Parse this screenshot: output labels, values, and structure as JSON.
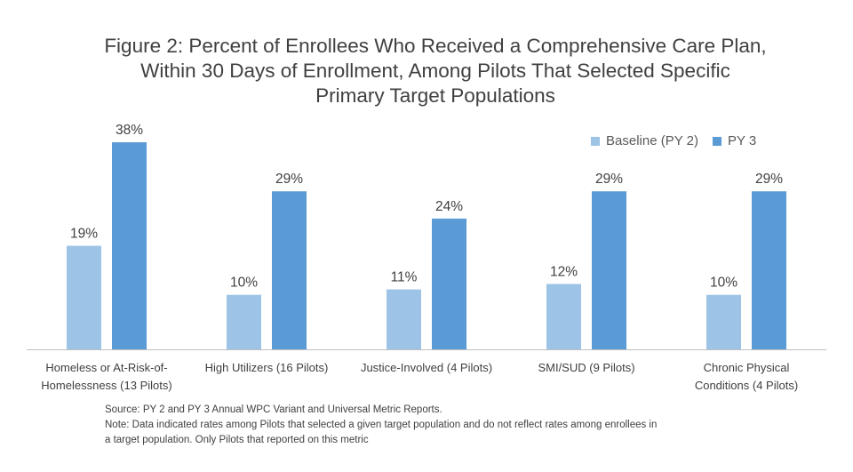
{
  "title_lines": [
    "Figure 2: Percent of Enrollees Who Received a Comprehensive Care Plan,",
    "Within 30 Days of Enrollment, Among Pilots That Selected Specific",
    "Primary Target Populations"
  ],
  "legend": {
    "baseline_label": "Baseline (PY 2)",
    "py3_label": "PY 3"
  },
  "colors": {
    "baseline": "#9DC3E6",
    "py3": "#5B9BD5",
    "axis": "#BFBFBF"
  },
  "notes": {
    "source": "Source: PY 2 and PY 3 Annual WPC Variant and Universal Metric Reports.",
    "note_line1": "Note: Data indicated rates among Pilots that selected a given target population and do not reflect rates among enrollees in",
    "note_line2": "a target population. Only Pilots that reported on this metric"
  },
  "chart_data": {
    "type": "bar",
    "categories": [
      [
        "Homeless or At-Risk-of-",
        "Homelessness (13 Pilots)"
      ],
      [
        "High Utilizers (16 Pilots)"
      ],
      [
        "Justice-Involved (4 Pilots)"
      ],
      [
        "SMI/SUD (9 Pilots)"
      ],
      [
        "Chronic Physical",
        "Conditions (4 Pilots)"
      ]
    ],
    "series": [
      {
        "name": "Baseline (PY 2)",
        "values": [
          19,
          10,
          11,
          12,
          10
        ],
        "labels": [
          "19%",
          "10%",
          "11%",
          "12%",
          "10%"
        ]
      },
      {
        "name": "PY 3",
        "values": [
          38,
          29,
          24,
          29,
          29
        ],
        "labels": [
          "38%",
          "29%",
          "24%",
          "29%",
          "29%"
        ]
      }
    ],
    "title": "Figure 2: Percent of Enrollees Who Received a Comprehensive Care Plan, Within 30 Days of Enrollment, Among Pilots That Selected Specific Primary Target Populations",
    "xlabel": "",
    "ylabel": "",
    "ylim": [
      0,
      40
    ],
    "grid": false,
    "legend_position": "top-right"
  }
}
